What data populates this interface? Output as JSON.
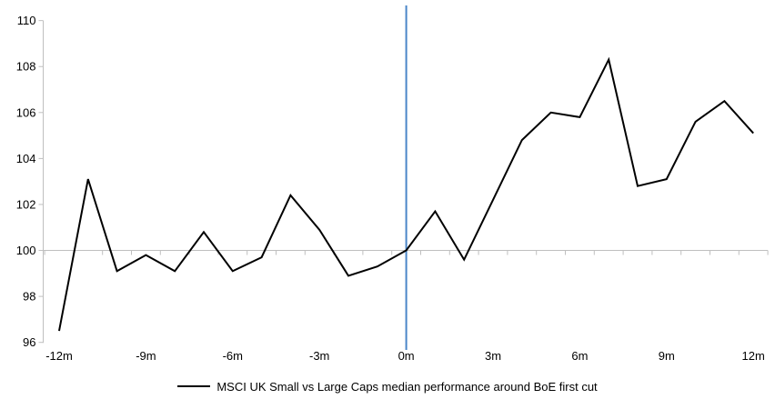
{
  "colors": {
    "series_line": "#000000",
    "event_line": "#4A86C8",
    "axis_line": "#BFBFBF",
    "tick_text": "#000000"
  },
  "chart_data": {
    "type": "line",
    "title": "",
    "x": [
      -12,
      -11,
      -10,
      -9,
      -8,
      -7,
      -6,
      -5,
      -4,
      -3,
      -2,
      -1,
      0,
      1,
      2,
      3,
      4,
      5,
      6,
      7,
      8,
      9,
      10,
      11,
      12
    ],
    "series": [
      {
        "name": "MSCI UK Small vs Large Caps median performance around BoE first cut",
        "values": [
          96.5,
          103.1,
          99.1,
          99.8,
          99.1,
          100.8,
          99.1,
          99.7,
          102.4,
          100.9,
          98.9,
          99.3,
          100.0,
          101.7,
          99.6,
          102.2,
          104.8,
          106.0,
          105.8,
          108.3,
          102.8,
          103.1,
          105.6,
          106.5,
          105.1
        ]
      }
    ],
    "xlim": [
      -12,
      12
    ],
    "ylim": [
      96,
      110
    ],
    "yticks": [
      96,
      98,
      100,
      102,
      104,
      106,
      108,
      110
    ],
    "xtick_values": [
      -12,
      -9,
      -6,
      -3,
      0,
      3,
      6,
      9,
      12
    ],
    "xtick_labels": [
      "-12m",
      "-9m",
      "-6m",
      "-3m",
      "0m",
      "3m",
      "6m",
      "9m",
      "12m"
    ],
    "baseline": 100,
    "event_x": 0,
    "minor_xtick_every_months": 1,
    "grid": "off",
    "legend_position": "bottom"
  }
}
